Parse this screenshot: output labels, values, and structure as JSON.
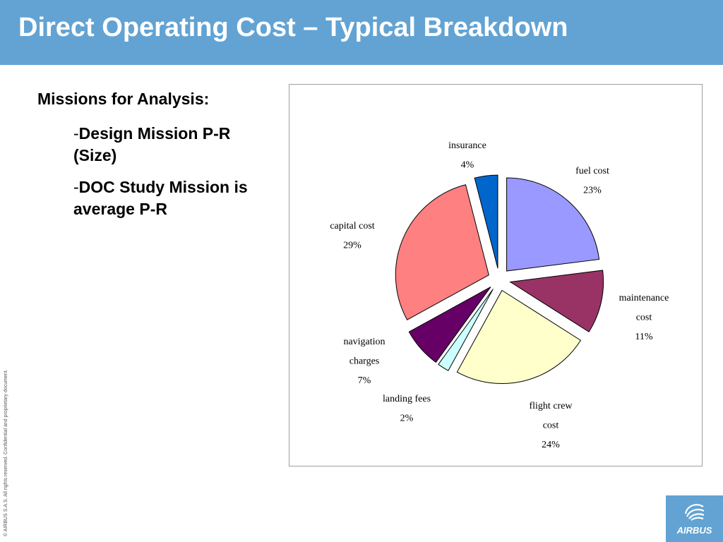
{
  "slide": {
    "title": "Direct Operating Cost – Typical Breakdown",
    "heading": "Missions for Analysis:",
    "bullets": [
      {
        "dash": "-",
        "text": "Design Mission P-R (Size)"
      },
      {
        "dash": "-",
        "text": "DOC Study Mission is average P-R"
      }
    ],
    "copyright": "© AIRBUS S.A.S. All rights reserved. Confidential and proprietary document.",
    "logo_text": "AIRBUS",
    "logo_icon": "airbus-swirl-icon",
    "header_color": "#62a3d3"
  },
  "chart_data": {
    "type": "pie",
    "exploded": true,
    "slices": [
      {
        "label": "fuel cost",
        "value": 23,
        "pct": "23%",
        "color": "#9999ff"
      },
      {
        "label": "maintenance cost",
        "value": 11,
        "pct": "11%",
        "color": "#993366"
      },
      {
        "label": "flight crew cost",
        "value": 24,
        "pct": "24%",
        "color": "#ffffcc"
      },
      {
        "label": "landing fees",
        "value": 2,
        "pct": "2%",
        "color": "#ccffff"
      },
      {
        "label": "navigation charges",
        "value": 7,
        "pct": "7%",
        "color": "#660066"
      },
      {
        "label": "capital cost",
        "value": 29,
        "pct": "29%",
        "color": "#ff8080"
      },
      {
        "label": "insurance",
        "value": 4,
        "pct": "4%",
        "color": "#0066cc"
      }
    ]
  }
}
